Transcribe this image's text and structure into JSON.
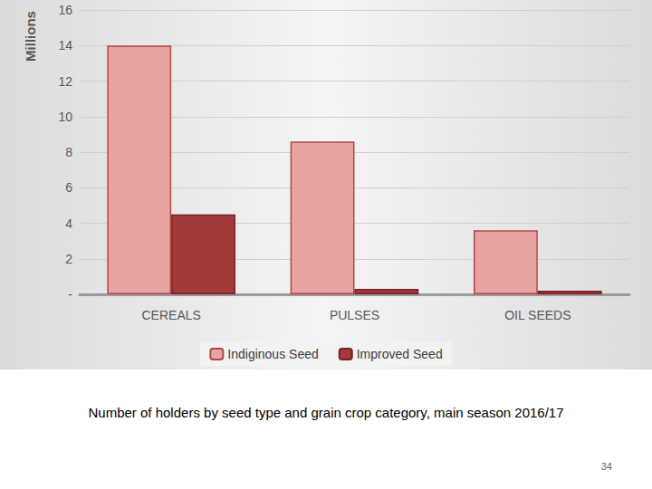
{
  "chart_data": {
    "type": "bar",
    "title": "Number of holders by seed type and grain crop category, main season 2016/17",
    "y_label": "Millions",
    "annotations": [
      "34"
    ],
    "categories": [
      "CEREALS",
      "PULSES",
      "OIL SEEDS"
    ],
    "series": [
      {
        "name": "Indiginous Seed",
        "color": "#e8a3a3",
        "values": [
          14.0,
          8.6,
          3.6
        ]
      },
      {
        "name": "Improved Seed",
        "color": "#a33a3a",
        "values": [
          4.5,
          0.3,
          0.2
        ]
      }
    ],
    "ylim": [
      0,
      16
    ],
    "yticks": [
      {
        "value": 0,
        "label": "-"
      },
      2,
      4,
      6,
      8,
      10,
      12,
      14,
      16
    ],
    "grid": true,
    "legend": "bottom"
  }
}
